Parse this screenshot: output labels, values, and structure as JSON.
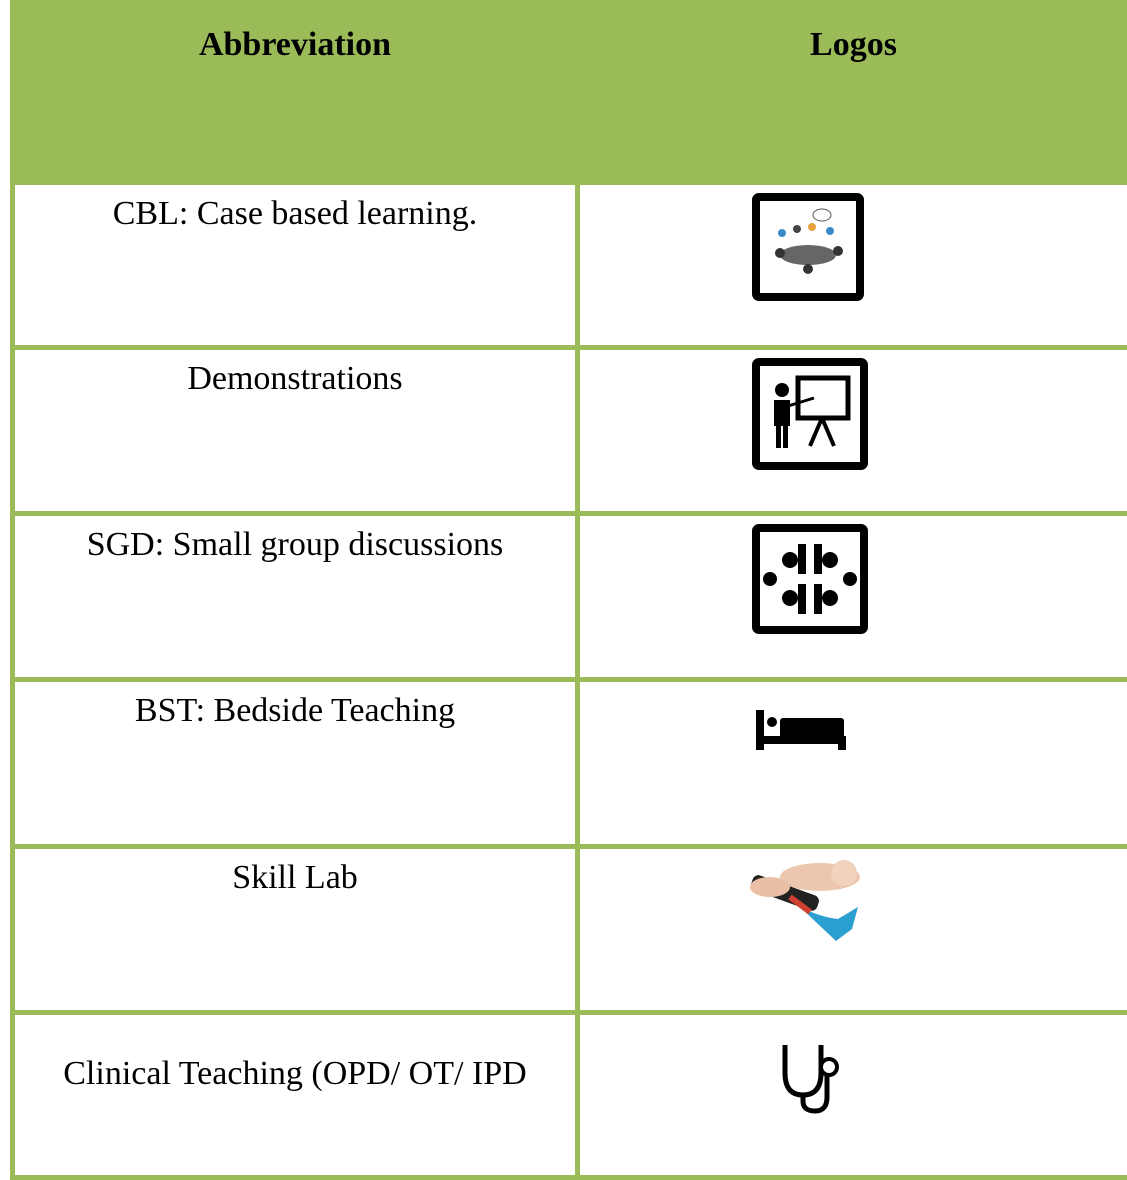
{
  "table": {
    "header": [
      "Abbreviation",
      "Logos"
    ],
    "rows": [
      "CBL: Case based learning.",
      "Demonstrations",
      "SGD: Small group discussions",
      "BST: Bedside Teaching",
      "Skill Lab",
      "Clinical Teaching (OPD/ OT/ IPD"
    ]
  }
}
